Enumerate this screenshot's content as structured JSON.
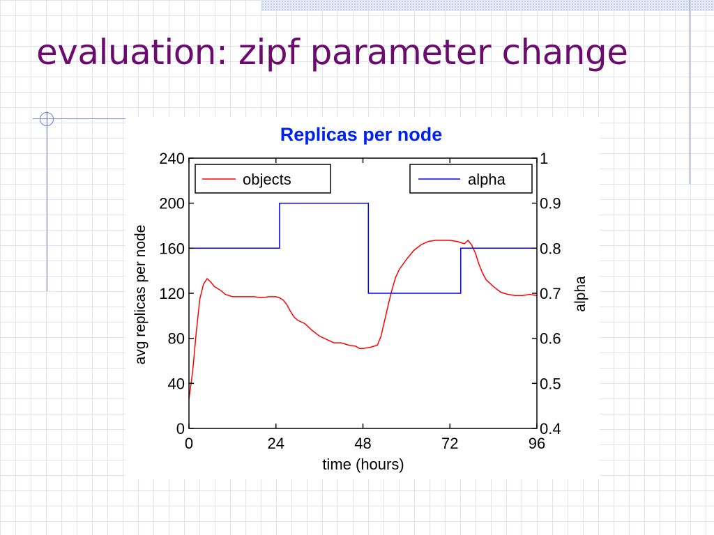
{
  "slide": {
    "title": "evaluation: zipf parameter change"
  },
  "chart_data": {
    "type": "line",
    "title": "Replicas per node",
    "xlabel": "time (hours)",
    "ylabel": "avg replicas per node",
    "y2label": "alpha",
    "xlim": [
      0,
      96
    ],
    "ylim": [
      0,
      240
    ],
    "y2lim": [
      0.4,
      1
    ],
    "x_ticks": [
      0,
      24,
      48,
      72,
      96
    ],
    "y_ticks": [
      0,
      40,
      80,
      120,
      160,
      200,
      240
    ],
    "y2_ticks": [
      0.4,
      0.5,
      0.6,
      0.7,
      0.8,
      0.9,
      1
    ],
    "grid": false,
    "legend": [
      {
        "label": "objects",
        "color": "#ff0000",
        "placement": "top-left"
      },
      {
        "label": "alpha",
        "color": "#0000ff",
        "placement": "top-right"
      }
    ],
    "series": [
      {
        "name": "objects",
        "axis": "left",
        "color": "#ff0000",
        "x": [
          0,
          1,
          2,
          3,
          4,
          5,
          6,
          7,
          8,
          9,
          10,
          12,
          14,
          16,
          18,
          20,
          22,
          24,
          25,
          26,
          27,
          28,
          29,
          30,
          32,
          34,
          36,
          38,
          40,
          42,
          44,
          46,
          47,
          48,
          50,
          52,
          53,
          54,
          55,
          56,
          57,
          58,
          60,
          62,
          64,
          66,
          68,
          70,
          72,
          74,
          76,
          77,
          78,
          79,
          80,
          81,
          82,
          84,
          86,
          88,
          90,
          92,
          94,
          96
        ],
        "values": [
          26,
          50,
          85,
          115,
          128,
          133,
          130,
          126,
          124,
          122,
          119,
          117,
          117,
          117,
          117,
          116,
          117,
          117,
          116,
          114,
          110,
          104,
          99,
          96,
          93,
          87,
          82,
          79,
          76,
          76,
          74,
          73,
          71,
          71,
          72,
          74,
          82,
          96,
          110,
          123,
          134,
          141,
          150,
          158,
          163,
          166,
          167,
          167,
          167,
          166,
          164,
          167,
          163,
          156,
          146,
          138,
          132,
          126,
          121,
          119,
          118,
          118,
          119,
          118
        ]
      },
      {
        "name": "alpha",
        "axis": "right",
        "color": "#0000ff",
        "step": true,
        "x": [
          0,
          25,
          25,
          49.5,
          49.5,
          75,
          75,
          96
        ],
        "values": [
          0.8,
          0.8,
          0.9,
          0.9,
          0.7,
          0.7,
          0.8,
          0.8
        ]
      }
    ]
  }
}
